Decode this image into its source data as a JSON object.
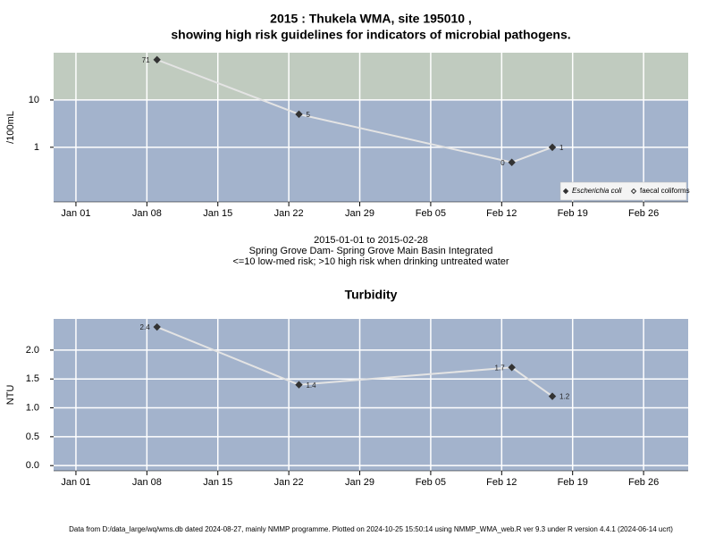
{
  "chart_data": [
    {
      "type": "line",
      "title": [
        "2015 : Thukela WMA, site 195010 ,",
        "showing high risk guidelines for indicators of microbial pathogens."
      ],
      "subtitle": [
        "2015-01-01 to 2015-02-28",
        "Spring Grove Dam- Spring Grove Main Basin Integrated",
        "<=10 low-med risk; >10 high risk when drinking untreated water"
      ],
      "ylabel": "/100mL",
      "log_y": true,
      "background": "#a3b3cc",
      "high_risk_threshold": 10,
      "high_risk_color": "#c0cbbf",
      "x": [
        8,
        22,
        43,
        47
      ],
      "series": [
        {
          "name": "Escherichia coli",
          "color": "#333333",
          "marker": "filled",
          "values": [
            71,
            5,
            0.48,
            1
          ],
          "value_labels": [
            "71",
            "5",
            "0",
            "1"
          ]
        },
        {
          "name": "faecal coliforms",
          "color": "#333333",
          "marker": "open",
          "values": [
            null,
            null,
            null,
            null
          ]
        }
      ],
      "xlim": [
        -2.2,
        60.4
      ],
      "xticks": [
        {
          "value": 0,
          "label": "Jan 01"
        },
        {
          "value": 7,
          "label": "Jan 08"
        },
        {
          "value": 14,
          "label": "Jan 15"
        },
        {
          "value": 21,
          "label": "Jan 22"
        },
        {
          "value": 28,
          "label": "Jan 29"
        },
        {
          "value": 35,
          "label": "Feb 05"
        },
        {
          "value": 42,
          "label": "Feb 12"
        },
        {
          "value": 49,
          "label": "Feb 19"
        },
        {
          "value": 56,
          "label": "Feb 26"
        }
      ],
      "ylim": [
        0.07,
        100
      ],
      "yticks": [
        1,
        10
      ],
      "grid": true,
      "legend": "bottom-right"
    },
    {
      "type": "line",
      "title": [
        "Turbidity"
      ],
      "ylabel": "NTU",
      "log_y": false,
      "background": "#a3b3cc",
      "x": [
        8,
        22,
        43,
        47
      ],
      "series": [
        {
          "color": "#333333",
          "marker": "filled",
          "values": [
            2.4,
            1.4,
            1.7,
            1.2
          ]
        }
      ],
      "xlim": [
        -2.2,
        60.4
      ],
      "xticks": [
        {
          "value": 0,
          "label": "Jan 01"
        },
        {
          "value": 7,
          "label": "Jan 08"
        },
        {
          "value": 14,
          "label": "Jan 15"
        },
        {
          "value": 21,
          "label": "Jan 22"
        },
        {
          "value": 28,
          "label": "Jan 29"
        },
        {
          "value": 35,
          "label": "Feb 05"
        },
        {
          "value": 42,
          "label": "Feb 12"
        },
        {
          "value": 49,
          "label": "Feb 19"
        },
        {
          "value": 56,
          "label": "Feb 26"
        }
      ],
      "ylim": [
        -0.09,
        2.54
      ],
      "yticks": [
        {
          "value": 0,
          "label": "0.0"
        },
        {
          "value": 0.5,
          "label": "0.5"
        },
        {
          "value": 1,
          "label": "1.0"
        },
        {
          "value": 1.5,
          "label": "1.5"
        },
        {
          "value": 2,
          "label": "2.0"
        }
      ],
      "grid": true
    }
  ],
  "footer": "Data from D:/data_large/wq/wms.db dated 2024-08-27, mainly NMMP programme. Plotted on 2024-10-25 15:50:14 using NMMP_WMA_web.R ver 9.3 under R version 4.4.1 (2024-06-14 ucrt)"
}
